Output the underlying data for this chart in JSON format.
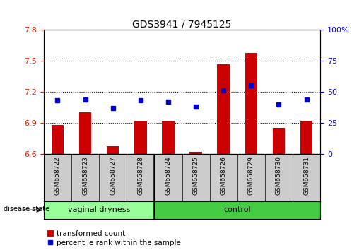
{
  "title": "GDS3941 / 7945125",
  "samples": [
    "GSM658722",
    "GSM658723",
    "GSM658727",
    "GSM658728",
    "GSM658724",
    "GSM658725",
    "GSM658726",
    "GSM658729",
    "GSM658730",
    "GSM658731"
  ],
  "transformed_count": [
    6.88,
    7.0,
    6.67,
    6.92,
    6.92,
    6.62,
    7.47,
    7.58,
    6.85,
    6.92
  ],
  "percentile_rank": [
    43,
    44,
    37,
    43,
    42,
    38,
    51,
    55,
    40,
    44
  ],
  "ylim_left": [
    6.6,
    7.8
  ],
  "ylim_right": [
    0,
    100
  ],
  "yticks_left": [
    6.6,
    6.9,
    7.2,
    7.5,
    7.8
  ],
  "yticks_right": [
    0,
    25,
    50,
    75,
    100
  ],
  "bar_color": "#cc0000",
  "dot_color": "#0000cc",
  "bar_bottom": 6.6,
  "group1_label": "vaginal dryness",
  "group2_label": "control",
  "group1_count": 4,
  "group2_count": 6,
  "group1_color": "#99ff99",
  "group2_color": "#44cc44",
  "disease_state_label": "disease state",
  "legend_bar_label": "transformed count",
  "legend_dot_label": "percentile rank within the sample",
  "background_color": "#ffffff",
  "plot_bg_color": "#ffffff",
  "grid_color": "#000000",
  "tick_label_color_left": "#cc2200",
  "tick_label_color_right": "#0000cc",
  "title_fontsize": 10,
  "tick_fontsize": 8,
  "sample_label_fontsize": 6.5,
  "group_label_fontsize": 8,
  "legend_fontsize": 7.5
}
